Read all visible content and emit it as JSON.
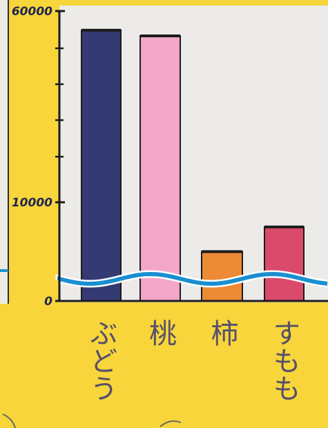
{
  "chart_data": {
    "type": "bar",
    "title": "",
    "xlabel": "",
    "ylabel": "",
    "categories": [
      "ぶどう",
      "桃",
      "柿",
      "すもも"
    ],
    "values": [
      55000,
      53500,
      5000,
      7500
    ],
    "bar_colors": [
      "#363a72",
      "#f2a7c8",
      "#ec8a35",
      "#d94a6b"
    ],
    "y_tick_labels": [
      {
        "value": 0,
        "label": "0"
      },
      {
        "value": 10000,
        "label": "10000"
      },
      {
        "value": 60000,
        "label": "60000"
      }
    ],
    "y_minor_ticks": [
      20000,
      30000,
      40000,
      50000
    ],
    "ylim": [
      0,
      60000
    ],
    "axis_break": true,
    "wave_line_color": "#1a8fd0",
    "background_color": "#f7d53b",
    "plot_background": "#ecebe9"
  }
}
